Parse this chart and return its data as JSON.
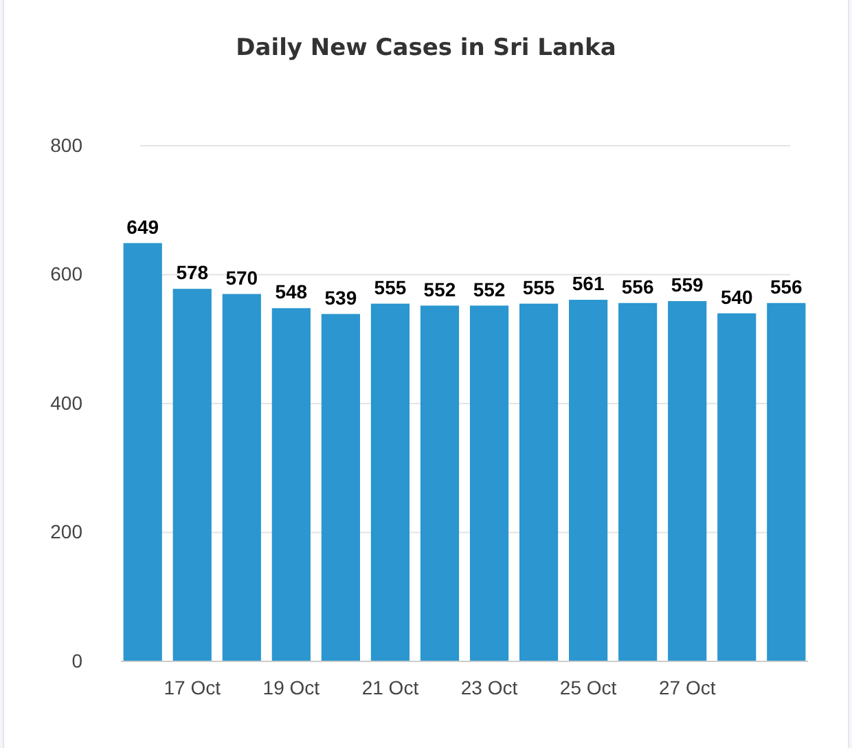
{
  "chart_data": {
    "type": "bar",
    "title": "Daily New Cases in Sri Lanka",
    "categories": [
      null,
      "17 Oct",
      null,
      "19 Oct",
      null,
      "21 Oct",
      null,
      "23 Oct",
      null,
      "25 Oct",
      null,
      "27 Oct",
      null,
      null
    ],
    "values": [
      649,
      578,
      570,
      548,
      539,
      555,
      552,
      552,
      555,
      561,
      556,
      559,
      540,
      556
    ],
    "color": "#2b96cf",
    "ylim": [
      0,
      800
    ],
    "yticks": [
      0,
      200,
      400,
      600,
      800
    ],
    "grid": "y",
    "data_labels": true
  }
}
